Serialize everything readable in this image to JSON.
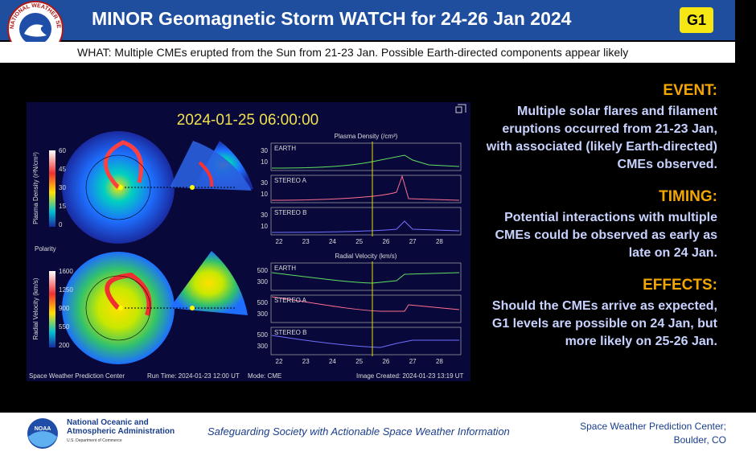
{
  "header": {
    "logo_text": "NATIONAL WEATHER SERVICE",
    "title": "MINOR Geomagnetic Storm WATCH for 24-26 Jan 2024",
    "badge": "G1"
  },
  "what": "WHAT: Multiple CMEs erupted from the Sun from 21-23 Jan. Possible Earth-directed components appear likely",
  "sections": [
    {
      "heading": "EVENT:",
      "body": "Multiple solar flares and filament eruptions occurred from 21-23 Jan, with associated (likely Earth-directed) CMEs observed."
    },
    {
      "heading": "TIMING:",
      "body": "Potential interactions with multiple CMEs could be observed as early as late on 24 Jan."
    },
    {
      "heading": "EFFECTS:",
      "body": "Should the CMEs arrive as expected, G1 levels are possible on 24 Jan, but more likely on 25-26 Jan."
    }
  ],
  "model": {
    "timestamp": "2024-01-25  06:00:00",
    "density_bar": {
      "label": "Plasma Density (r²N/cm³)",
      "ticks": [
        "60",
        "45",
        "30",
        "15",
        "0"
      ]
    },
    "polarity": "Polarity",
    "velocity_bar": {
      "label": "Radial Velocity (km/s)",
      "ticks": [
        "1600",
        "1250",
        "900",
        "550",
        "200"
      ]
    },
    "density_plot": {
      "title": "Plasma Density (/cm³)",
      "panels": [
        {
          "name": "EARTH",
          "ticks": [
            "30",
            "10"
          ]
        },
        {
          "name": "STEREO A",
          "ticks": [
            "30",
            "10"
          ]
        },
        {
          "name": "STEREO B",
          "ticks": [
            "30",
            "10"
          ]
        }
      ],
      "xticks": [
        "22",
        "23",
        "24",
        "25",
        "26",
        "27",
        "28"
      ]
    },
    "velocity_plot": {
      "title": "Radial Velocity (km/s)",
      "panels": [
        {
          "name": "EARTH",
          "ticks": [
            "500",
            "300"
          ]
        },
        {
          "name": "STEREO A",
          "ticks": [
            "500",
            "300"
          ]
        },
        {
          "name": "STEREO B",
          "ticks": [
            "500",
            "300"
          ]
        }
      ],
      "xticks": [
        "22",
        "23",
        "24",
        "25",
        "26",
        "27",
        "28"
      ]
    },
    "footer": [
      "Space Weather Prediction Center",
      "Run Time: 2024-01-23 12:00 UT",
      "Mode: CME",
      "Image Created: 2024-01-23 13:19 UT"
    ]
  },
  "footer": {
    "noaa": "NOAA",
    "org": "National Oceanic and Atmospheric Administration",
    "dept": "U.S. Department of Commerce",
    "tagline": "Safeguarding Society with Actionable Space Weather Information",
    "center": "Space Weather Prediction Center;",
    "city": "Boulder, CO"
  }
}
